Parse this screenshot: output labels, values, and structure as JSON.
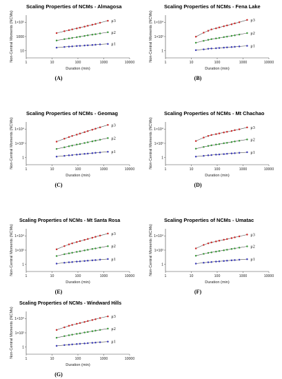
{
  "chart_data": [
    {
      "type": "scatter",
      "panel_label": "(A)",
      "title": "Scaling Properties of NCMs - Almagosa",
      "xlabel": "Duration (min)",
      "ylabel": "Non-Central Moments (NCMs)",
      "xscale": "log",
      "yscale": "log",
      "xlim": [
        1,
        10000
      ],
      "ylim": [
        1,
        100000
      ],
      "xticks": [
        "1",
        "10",
        "100",
        "1000",
        "10000"
      ],
      "yticks": [
        "10",
        "1000",
        "1×10⁵"
      ],
      "x": [
        15,
        30,
        45,
        60,
        90,
        120,
        180,
        240,
        360,
        480,
        720,
        1440
      ],
      "series": [
        {
          "name": "μ3",
          "color": "#cc2a2a",
          "values": [
            800,
            1330,
            1760,
            2170,
            2820,
            3440,
            4600,
            5700,
            7600,
            9500,
            12900,
            22100
          ]
        },
        {
          "name": "μ2",
          "color": "#3a9a3a",
          "values": [
            110,
            155,
            190,
            220,
            265,
            305,
            375,
            430,
            520,
            600,
            730,
            1000
          ]
        },
        {
          "name": "μ1",
          "color": "#3a3ab8",
          "values": [
            16,
            19,
            21,
            22.5,
            24.5,
            26,
            28.5,
            30,
            33,
            35,
            38,
            43
          ]
        }
      ]
    },
    {
      "type": "scatter",
      "panel_label": "(B)",
      "title": "Scaling Properties of NCMs - Fena Lake",
      "xlabel": "Duration (min)",
      "ylabel": "Non-Central Moments (NCMs)",
      "xscale": "log",
      "yscale": "log",
      "xlim": [
        1,
        10000
      ],
      "ylim": [
        1,
        100000
      ],
      "xticks": [
        "1",
        "10",
        "100",
        "1000",
        "10000"
      ],
      "yticks": [
        "1",
        "1×10²",
        "1×10⁴"
      ],
      "x": [
        15,
        30,
        45,
        60,
        90,
        120,
        180,
        240,
        360,
        480,
        720,
        1440
      ],
      "series": [
        {
          "name": "μ3",
          "color": "#cc2a2a",
          "values": [
            300,
            900,
            1500,
            2200,
            2900,
            3700,
            5000,
            6300,
            8600,
            11000,
            15000,
            28000
          ]
        },
        {
          "name": "μ2",
          "color": "#3a9a3a",
          "values": [
            60,
            100,
            130,
            155,
            190,
            220,
            270,
            310,
            380,
            440,
            540,
            800
          ]
        },
        {
          "name": "μ1",
          "color": "#3a3ab8",
          "values": [
            8,
            10,
            11.5,
            12.5,
            13.5,
            14.5,
            16,
            17,
            18.5,
            20,
            22,
            26
          ]
        }
      ]
    },
    {
      "type": "scatter",
      "panel_label": "(C)",
      "title": "Scaling Properties of NCMs - Geomag",
      "xlabel": "Duration (min)",
      "ylabel": "Non-Central Moments (NCMs)",
      "xscale": "log",
      "yscale": "log",
      "xlim": [
        1,
        10000
      ],
      "ylim": [
        1,
        100000
      ],
      "xticks": [
        "1",
        "10",
        "100",
        "1000",
        "10000"
      ],
      "yticks": [
        "1",
        "1×10²",
        "1×10⁴"
      ],
      "x": [
        15,
        30,
        45,
        60,
        90,
        120,
        180,
        240,
        360,
        480,
        720,
        1440
      ],
      "series": [
        {
          "name": "μ3",
          "color": "#cc2a2a",
          "values": [
            500,
            1100,
            1700,
            2300,
            3300,
            4400,
            6400,
            8600,
            12500,
            16500,
            24000,
            45000
          ]
        },
        {
          "name": "μ2",
          "color": "#3a9a3a",
          "values": [
            70,
            110,
            145,
            175,
            225,
            270,
            350,
            420,
            540,
            650,
            840,
            1300
          ]
        },
        {
          "name": "μ1",
          "color": "#3a3ab8",
          "values": [
            9,
            11,
            12.5,
            13.5,
            15,
            16.5,
            18.5,
            20,
            22.5,
            24.5,
            27.5,
            33
          ]
        }
      ]
    },
    {
      "type": "scatter",
      "panel_label": "(D)",
      "title": "Scaling Properties of NCMs - Mt Chachao",
      "xlabel": "Duration (min)",
      "ylabel": "Non-Central Moments (NCMs)",
      "xscale": "log",
      "yscale": "log",
      "xlim": [
        1,
        10000
      ],
      "ylim": [
        1,
        100000
      ],
      "xticks": [
        "1",
        "10",
        "100",
        "1000",
        "10000"
      ],
      "yticks": [
        "1",
        "1×10²",
        "1×10⁴"
      ],
      "x": [
        15,
        30,
        45,
        60,
        90,
        120,
        180,
        240,
        360,
        480,
        720,
        1440
      ],
      "series": [
        {
          "name": "μ3",
          "color": "#cc2a2a",
          "values": [
            600,
            1500,
            2300,
            3000,
            3800,
            4600,
            5900,
            7000,
            9000,
            11000,
            14000,
            23000
          ]
        },
        {
          "name": "μ2",
          "color": "#3a9a3a",
          "values": [
            75,
            120,
            155,
            185,
            225,
            260,
            320,
            370,
            450,
            520,
            640,
            900
          ]
        },
        {
          "name": "μ1",
          "color": "#3a3ab8",
          "values": [
            9,
            11,
            12.5,
            13.5,
            15,
            16,
            17.5,
            19,
            21,
            22.5,
            24.5,
            29
          ]
        }
      ]
    },
    {
      "type": "scatter",
      "panel_label": "(E)",
      "title": "Scaling Properties of NCMs - Mt Santa Rosa",
      "xlabel": "Duration (min)",
      "ylabel": "Non-Central Moments (NCMs)",
      "xscale": "log",
      "yscale": "log",
      "xlim": [
        1,
        10000
      ],
      "ylim": [
        1,
        100000
      ],
      "xticks": [
        "1",
        "10",
        "100",
        "1000",
        "10000"
      ],
      "yticks": [
        "1",
        "1×10²",
        "1×10⁴"
      ],
      "x": [
        15,
        30,
        45,
        60,
        90,
        120,
        180,
        240,
        360,
        480,
        720,
        1440
      ],
      "series": [
        {
          "name": "μ3",
          "color": "#cc2a2a",
          "values": [
            400,
            950,
            1500,
            2000,
            2800,
            3600,
            5000,
            6400,
            9000,
            11500,
            16000,
            28000
          ]
        },
        {
          "name": "μ2",
          "color": "#3a9a3a",
          "values": [
            65,
            105,
            135,
            160,
            200,
            235,
            295,
            345,
            430,
            505,
            630,
            920
          ]
        },
        {
          "name": "μ1",
          "color": "#3a3ab8",
          "values": [
            8.5,
            10.5,
            12,
            13,
            14.5,
            15.5,
            17,
            18.5,
            20.5,
            22,
            24.5,
            29
          ]
        }
      ]
    },
    {
      "type": "scatter",
      "panel_label": "(F)",
      "title": "Scaling Properties of NCMs - Umatac",
      "xlabel": "Duration (min)",
      "ylabel": "Non-Central Moments (NCMs)",
      "xscale": "log",
      "yscale": "log",
      "xlim": [
        1,
        10000
      ],
      "ylim": [
        1,
        100000
      ],
      "xticks": [
        "1",
        "10",
        "100",
        "1000",
        "10000"
      ],
      "yticks": [
        "1",
        "1×10²",
        "1×10⁴"
      ],
      "x": [
        15,
        30,
        45,
        60,
        90,
        120,
        180,
        240,
        360,
        480,
        720,
        1440
      ],
      "series": [
        {
          "name": "μ3",
          "color": "#cc2a2a",
          "values": [
            500,
            1300,
            2000,
            2600,
            3300,
            4000,
            5200,
            6300,
            8200,
            10000,
            13000,
            21000
          ]
        },
        {
          "name": "μ2",
          "color": "#3a9a3a",
          "values": [
            70,
            115,
            150,
            175,
            215,
            250,
            305,
            355,
            435,
            505,
            620,
            880
          ]
        },
        {
          "name": "μ1",
          "color": "#3a3ab8",
          "values": [
            8.5,
            10.5,
            12,
            13,
            14.5,
            15.5,
            17,
            18.5,
            20.5,
            22,
            24,
            28
          ]
        }
      ]
    },
    {
      "type": "scatter",
      "panel_label": "(G)",
      "title": "Scaling Properties of NCMs - Windward Hills",
      "xlabel": "Duration (min)",
      "ylabel": "Non-Central Moments (NCMs)",
      "xscale": "log",
      "yscale": "log",
      "xlim": [
        1,
        10000
      ],
      "ylim": [
        1,
        100000
      ],
      "xticks": [
        "1",
        "10",
        "100",
        "1000",
        "10000"
      ],
      "yticks": [
        "1",
        "1×10²",
        "1×10⁴"
      ],
      "x": [
        15,
        30,
        45,
        60,
        90,
        120,
        180,
        240,
        360,
        480,
        720,
        1440
      ],
      "series": [
        {
          "name": "μ3",
          "color": "#cc2a2a",
          "values": [
            700,
            1400,
            2100,
            2700,
            3600,
            4500,
            6000,
            7500,
            10000,
            12500,
            17000,
            27000
          ]
        },
        {
          "name": "μ2",
          "color": "#3a9a3a",
          "values": [
            85,
            130,
            165,
            195,
            240,
            280,
            345,
            400,
            490,
            570,
            700,
            980
          ]
        },
        {
          "name": "μ1",
          "color": "#3a3ab8",
          "values": [
            9.5,
            11.5,
            13,
            14,
            15.5,
            16.5,
            18,
            19.5,
            21.5,
            23,
            25.5,
            30
          ]
        }
      ]
    }
  ]
}
